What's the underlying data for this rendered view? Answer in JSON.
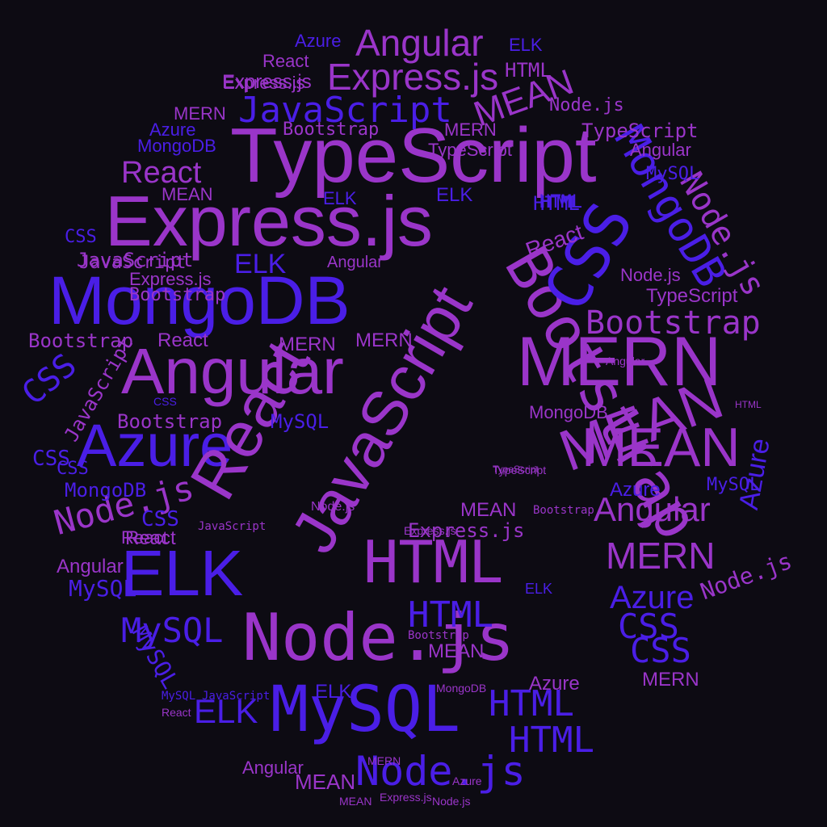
{
  "palette": {
    "background": "#0d0b13",
    "violet": "#9a35c9",
    "indigo": "#4a1ee6",
    "purple": "#6a28d6"
  },
  "words": [
    {
      "text": "TypeScript",
      "color": "#9a35c9",
      "rot": 0
    },
    {
      "text": "Express.js",
      "color": "#9a35c9",
      "rot": 0
    },
    {
      "text": "MongoDB",
      "color": "#4a1ee6",
      "rot": 0
    },
    {
      "text": "Angular",
      "color": "#9a35c9",
      "rot": 0
    },
    {
      "text": "MERN",
      "color": "#9a35c9",
      "rot": 0
    },
    {
      "text": "MEAN",
      "color": "#9a35c9",
      "rot": -20
    },
    {
      "text": "Azure",
      "color": "#4a1ee6",
      "rot": 0
    },
    {
      "text": "ELK",
      "color": "#4a1ee6",
      "rot": 0
    },
    {
      "text": "HTML",
      "color": "#9a35c9",
      "rot": 0
    },
    {
      "text": "Node.js",
      "color": "#9a35c9",
      "rot": 0
    },
    {
      "text": "MySQL",
      "color": "#4a1ee6",
      "rot": 0
    },
    {
      "text": "React",
      "color": "#9a35c9",
      "rot": -60
    },
    {
      "text": "JavaScript",
      "color": "#9a35c9",
      "rot": -60
    },
    {
      "text": "Bootstrap",
      "color": "#9a35c9",
      "rot": 60
    },
    {
      "text": "CSS",
      "color": "#4a1ee6",
      "rot": -60
    },
    {
      "text": "MongoDB",
      "color": "#4a1ee6",
      "rot": 60
    },
    {
      "text": "Angular",
      "color": "#9a35c9",
      "rot": 0
    },
    {
      "text": "Express.js",
      "color": "#9a35c9",
      "rot": 0
    },
    {
      "text": "JavaScript",
      "color": "#4a1ee6",
      "rot": 0
    },
    {
      "text": "MEAN",
      "color": "#9a35c9",
      "rot": -20
    },
    {
      "text": "React",
      "color": "#9a35c9",
      "rot": 0
    },
    {
      "text": "Bootstrap",
      "color": "#9a35c9",
      "rot": 0
    },
    {
      "text": "MEAN",
      "color": "#9a35c9",
      "rot": 0
    },
    {
      "text": "Angular",
      "color": "#9a35c9",
      "rot": 0
    },
    {
      "text": "MERN",
      "color": "#9a35c9",
      "rot": 0
    },
    {
      "text": "Azure",
      "color": "#4a1ee6",
      "rot": 0
    },
    {
      "text": "CSS",
      "color": "#4a1ee6",
      "rot": 0
    },
    {
      "text": "CSS",
      "color": "#4a1ee6",
      "rot": 0
    },
    {
      "text": "CSS",
      "color": "#4a1ee6",
      "rot": -40
    },
    {
      "text": "HTML",
      "color": "#4a1ee6",
      "rot": 0
    },
    {
      "text": "HTML",
      "color": "#4a1ee6",
      "rot": 0
    },
    {
      "text": "HTML",
      "color": "#4a1ee6",
      "rot": 0
    },
    {
      "text": "Node.js",
      "color": "#4a1ee6",
      "rot": 0
    },
    {
      "text": "Node.js",
      "color": "#9a35c9",
      "rot": -15
    },
    {
      "text": "MySQL",
      "color": "#4a1ee6",
      "rot": 0
    },
    {
      "text": "MySQL",
      "color": "#4a1ee6",
      "rot": 0
    },
    {
      "text": "ELK",
      "color": "#4a1ee6",
      "rot": 0
    },
    {
      "text": "ELK",
      "color": "#4a1ee6",
      "rot": 0
    },
    {
      "text": "Azure",
      "color": "#4a1ee6",
      "rot": -80
    },
    {
      "text": "Node.js",
      "color": "#9a35c9",
      "rot": -20
    },
    {
      "text": "MERN",
      "color": "#9a35c9",
      "rot": 0
    },
    {
      "text": "Express.js",
      "color": "#9a35c9",
      "rot": 0
    },
    {
      "text": "HTML",
      "color": "#9a35c9",
      "rot": 0
    },
    {
      "text": "ELK",
      "color": "#4a1ee6",
      "rot": 0
    },
    {
      "text": "Angular",
      "color": "#9a35c9",
      "rot": 0
    },
    {
      "text": "React",
      "color": "#9a35c9",
      "rot": 0
    },
    {
      "text": "Bootstrap",
      "color": "#9a35c9",
      "rot": 0
    },
    {
      "text": "JavaScript",
      "color": "#9a35c9",
      "rot": 0
    },
    {
      "text": "MongoDB",
      "color": "#9a35c9",
      "rot": 0
    },
    {
      "text": "CSS",
      "color": "#4a1ee6",
      "rot": 0
    },
    {
      "text": "Node.js",
      "color": "#9a35c9",
      "rot": 60
    },
    {
      "text": "MySQL",
      "color": "#4a1ee6",
      "rot": 0
    },
    {
      "text": "Bootstrap",
      "color": "#9a35c9",
      "rot": 0
    },
    {
      "text": "TypeScript",
      "color": "#9a35c9",
      "rot": 0
    },
    {
      "text": "MERN",
      "color": "#9a35c9",
      "rot": 0
    },
    {
      "text": "Azure",
      "color": "#4a1ee6",
      "rot": 0
    },
    {
      "text": "MEAN",
      "color": "#9a35c9",
      "rot": 0
    },
    {
      "text": "React",
      "color": "#9a35c9",
      "rot": 0
    },
    {
      "text": "Angular",
      "color": "#9a35c9",
      "rot": 0
    },
    {
      "text": "Express.js",
      "color": "#9a35c9",
      "rot": 0
    },
    {
      "text": "MySQL",
      "color": "#4a1ee6",
      "rot": 60
    },
    {
      "text": "Azure",
      "color": "#9a35c9",
      "rot": 0
    },
    {
      "text": "MongoDB",
      "color": "#4a1ee6",
      "rot": 0
    },
    {
      "text": "HTML",
      "color": "#4a1ee6",
      "rot": 0
    },
    {
      "text": "CSS",
      "color": "#4a1ee6",
      "rot": 0
    },
    {
      "text": "ELK",
      "color": "#4a1ee6",
      "rot": 0
    },
    {
      "text": "TypeScript",
      "color": "#9a35c9",
      "rot": 0
    },
    {
      "text": "MEAN",
      "color": "#9a35c9",
      "rot": 0
    },
    {
      "text": "MERN",
      "color": "#9a35c9",
      "rot": 0
    },
    {
      "text": "React",
      "color": "#9a35c9",
      "rot": -20
    },
    {
      "text": "JavaScript",
      "color": "#9a35c9",
      "rot": -60
    },
    {
      "text": "Angular",
      "color": "#9a35c9",
      "rot": 0
    },
    {
      "text": "Node.js",
      "color": "#9a35c9",
      "rot": 0
    },
    {
      "text": "Bootstrap",
      "color": "#9a35c9",
      "rot": 0
    },
    {
      "text": "Express.js",
      "color": "#9a35c9",
      "rot": 0
    },
    {
      "text": "MySQL",
      "color": "#4a1ee6",
      "rot": 0
    },
    {
      "text": "HTML",
      "color": "#4a1ee6",
      "rot": 0
    },
    {
      "text": "CSS",
      "color": "#4a1ee6",
      "rot": 0
    },
    {
      "text": "ELK",
      "color": "#4a1ee6",
      "rot": 0
    },
    {
      "text": "Azure",
      "color": "#4a1ee6",
      "rot": 0
    },
    {
      "text": "MEAN",
      "color": "#9a35c9",
      "rot": 0
    },
    {
      "text": "React",
      "color": "#9a35c9",
      "rot": 0
    },
    {
      "text": "MERN",
      "color": "#9a35c9",
      "rot": 0
    },
    {
      "text": "Node.js",
      "color": "#9a35c9",
      "rot": 0
    },
    {
      "text": "Express.js",
      "color": "#9a35c9",
      "rot": 0
    },
    {
      "text": "TypeScript",
      "color": "#9a35c9",
      "rot": 0
    },
    {
      "text": "JavaScript",
      "color": "#9a35c9",
      "rot": 0
    },
    {
      "text": "MongoDB",
      "color": "#4a1ee6",
      "rot": 0
    },
    {
      "text": "Bootstrap",
      "color": "#9a35c9",
      "rot": 0
    },
    {
      "text": "ELK",
      "color": "#4a1ee6",
      "rot": 0
    },
    {
      "text": "HTML",
      "color": "#4a1ee6",
      "rot": 0
    },
    {
      "text": "Azure",
      "color": "#4a1ee6",
      "rot": 0
    },
    {
      "text": "React",
      "color": "#9a35c9",
      "rot": 0
    },
    {
      "text": "MERN",
      "color": "#9a35c9",
      "rot": 0
    },
    {
      "text": "CSS",
      "color": "#4a1ee6",
      "rot": 0
    },
    {
      "text": "MySQL",
      "color": "#4a1ee6",
      "rot": 0
    },
    {
      "text": "Angular",
      "color": "#9a35c9",
      "rot": 0
    },
    {
      "text": "MEAN",
      "color": "#9a35c9",
      "rot": 0
    },
    {
      "text": "Node.js",
      "color": "#9a35c9",
      "rot": 0
    },
    {
      "text": "JavaScript",
      "color": "#4a1ee6",
      "rot": 0
    },
    {
      "text": "TypeScript",
      "color": "#9a35c9",
      "rot": 0
    },
    {
      "text": "Express.js",
      "color": "#9a35c9",
      "rot": 0
    },
    {
      "text": "Bootstrap",
      "color": "#9a35c9",
      "rot": 0
    },
    {
      "text": "HTML",
      "color": "#9a35c9",
      "rot": 0
    },
    {
      "text": "ELK",
      "color": "#4a1ee6",
      "rot": 0
    },
    {
      "text": "MongoDB",
      "color": "#9a35c9",
      "rot": 0
    },
    {
      "text": "Azure",
      "color": "#9a35c9",
      "rot": 0
    },
    {
      "text": "CSS",
      "color": "#4a1ee6",
      "rot": 0
    },
    {
      "text": "MySQL",
      "color": "#4a1ee6",
      "rot": 0
    },
    {
      "text": "React",
      "color": "#9a35c9",
      "rot": 0
    },
    {
      "text": "MERN",
      "color": "#9a35c9",
      "rot": 0
    },
    {
      "text": "MEAN",
      "color": "#9a35c9",
      "rot": 0
    },
    {
      "text": "Angular",
      "color": "#9a35c9",
      "rot": 0
    },
    {
      "text": "Node.js",
      "color": "#9a35c9",
      "rot": 0
    },
    {
      "text": "JavaScript",
      "color": "#9a35c9",
      "rot": 0
    },
    {
      "text": "TypeScript",
      "color": "#9a35c9",
      "rot": 0
    },
    {
      "text": "Express.js",
      "color": "#9a35c9",
      "rot": 0
    },
    {
      "text": "Bootstrap",
      "color": "#9a35c9",
      "rot": 0
    }
  ]
}
